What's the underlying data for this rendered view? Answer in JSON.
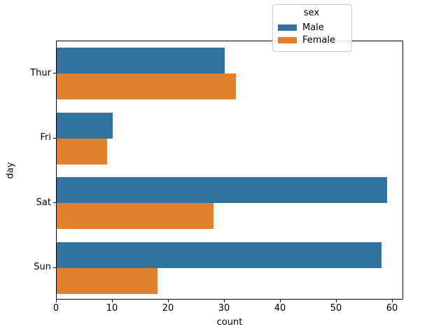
{
  "chart_data": {
    "type": "bar",
    "orientation": "horizontal",
    "title": "",
    "xlabel": "count",
    "ylabel": "day",
    "categories": [
      "Thur",
      "Fri",
      "Sat",
      "Sun"
    ],
    "series": [
      {
        "name": "Male",
        "color": "#3274a1",
        "values": [
          30,
          10,
          59,
          58
        ]
      },
      {
        "name": "Female",
        "color": "#e1812c",
        "values": [
          32,
          9,
          28,
          18
        ]
      }
    ],
    "xlim": [
      0,
      62
    ],
    "xticks": [
      0,
      10,
      20,
      30,
      40,
      50,
      60
    ],
    "grid": false,
    "legend": {
      "title": "sex",
      "position": "upper right",
      "entries": [
        "Male",
        "Female"
      ]
    }
  }
}
